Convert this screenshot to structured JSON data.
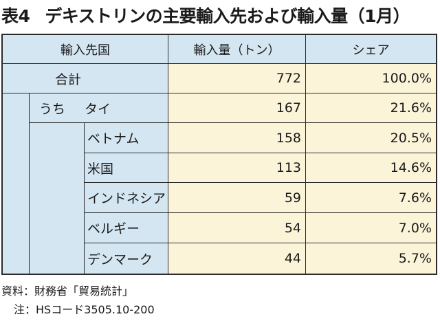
{
  "title": {
    "number": "表4",
    "text": "デキストリンの主要輸入先および輸入量（1月）"
  },
  "table": {
    "headers": [
      "輸入先国",
      "輸入量（トン）",
      "シェア"
    ],
    "total": {
      "label": "合計",
      "volume": "772",
      "share": "100.0%"
    },
    "sub_prefix": "うち",
    "rows": [
      {
        "country": "タイ",
        "volume": "167",
        "share": "21.6%"
      },
      {
        "country": "ベトナム",
        "volume": "158",
        "share": "20.5%"
      },
      {
        "country": "米国",
        "volume": "113",
        "share": "14.6%"
      },
      {
        "country": "インドネシア",
        "volume": "59",
        "share": "7.6%"
      },
      {
        "country": "ベルギー",
        "volume": "54",
        "share": "7.0%"
      },
      {
        "country": "デンマーク",
        "volume": "44",
        "share": "5.7%"
      }
    ]
  },
  "notes": {
    "source": "資料：財務省「貿易統計」",
    "note": "注：HSコード3505.10-200"
  },
  "colors": {
    "header_fill": "#d4e6f2",
    "value_fill": "#fbf4d9",
    "border": "#2b2b2b"
  }
}
